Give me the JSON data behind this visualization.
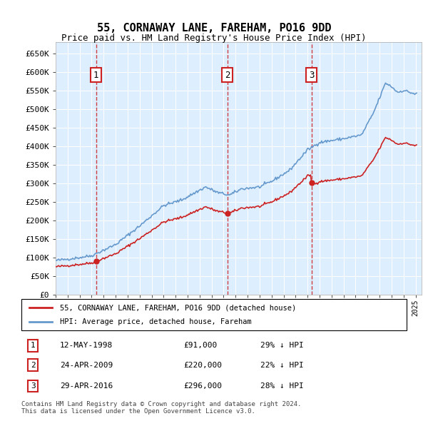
{
  "title": "55, CORNAWAY LANE, FAREHAM, PO16 9DD",
  "subtitle": "Price paid vs. HM Land Registry's House Price Index (HPI)",
  "footer": "Contains HM Land Registry data © Crown copyright and database right 2024.\nThis data is licensed under the Open Government Licence v3.0.",
  "legend_line1": "55, CORNAWAY LANE, FAREHAM, PO16 9DD (detached house)",
  "legend_line2": "HPI: Average price, detached house, Fareham",
  "sales": [
    {
      "num": 1,
      "date": "12-MAY-1998",
      "price": 91000,
      "hpi_pct": "29% ↓ HPI",
      "year": 1998.36
    },
    {
      "num": 2,
      "date": "24-APR-2009",
      "price": 220000,
      "hpi_pct": "22% ↓ HPI",
      "year": 2009.31
    },
    {
      "num": 3,
      "date": "29-APR-2016",
      "price": 296000,
      "hpi_pct": "28% ↓ HPI",
      "year": 2016.32
    }
  ],
  "ylim": [
    0,
    680000
  ],
  "xlim_start": 1995.0,
  "xlim_end": 2025.5,
  "hpi_color": "#6699cc",
  "price_color": "#cc2222",
  "bg_color": "#ddeeff",
  "grid_color": "#ffffff",
  "sale_marker_color": "#cc2222",
  "vline_color": "#cc2222"
}
